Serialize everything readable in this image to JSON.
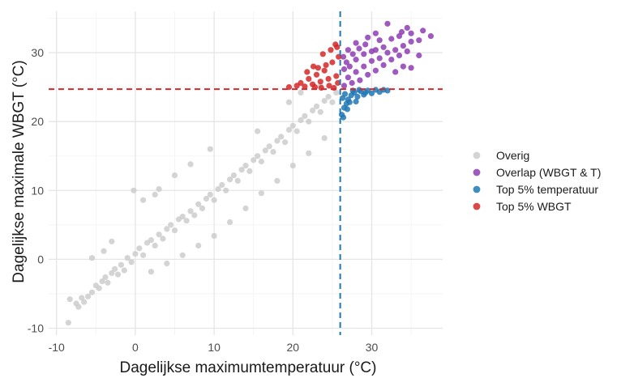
{
  "chart_data": {
    "type": "scatter",
    "xlabel": "Dagelijkse maximumtemperatuur (°C)",
    "ylabel": "Dagelijkse maximale WBGT (°C)",
    "xlim": [
      -11,
      39
    ],
    "ylim": [
      -11,
      36
    ],
    "xticks": [
      -10,
      0,
      10,
      20,
      30
    ],
    "yticks": [
      -10,
      0,
      10,
      20,
      30
    ],
    "grid": true,
    "legend_position": "right",
    "thresholds": {
      "temperature_top5": 26.0,
      "wbgt_top5": 24.7
    },
    "threshold_colors": {
      "temperature": "#1f77b4",
      "wbgt": "#d62728"
    },
    "series": [
      {
        "name": "Overig",
        "color": "#cccccc",
        "points": [
          [
            -8.5,
            -9.2
          ],
          [
            -8.3,
            -5.8
          ],
          [
            -7.5,
            -6.4
          ],
          [
            -7.2,
            -6.9
          ],
          [
            -6.8,
            -5.6
          ],
          [
            -6.5,
            -6.2
          ],
          [
            -6.0,
            -5.4
          ],
          [
            -5.5,
            -4.8
          ],
          [
            -5.0,
            -3.8
          ],
          [
            -4.6,
            -4.2
          ],
          [
            -4.2,
            -3.2
          ],
          [
            -3.8,
            -2.6
          ],
          [
            -3.5,
            -3.4
          ],
          [
            -3.0,
            -2.0
          ],
          [
            -2.6,
            -1.4
          ],
          [
            -2.2,
            -2.2
          ],
          [
            -1.8,
            -0.8
          ],
          [
            -1.4,
            -1.6
          ],
          [
            -1.0,
            0.2
          ],
          [
            -0.5,
            -0.4
          ],
          [
            0.0,
            0.8
          ],
          [
            0.5,
            1.6
          ],
          [
            1.0,
            0.6
          ],
          [
            1.5,
            2.4
          ],
          [
            2.0,
            2.8
          ],
          [
            2.5,
            2.0
          ],
          [
            3.0,
            3.6
          ],
          [
            3.5,
            3.0
          ],
          [
            4.0,
            4.4
          ],
          [
            4.5,
            5.0
          ],
          [
            5.0,
            4.2
          ],
          [
            5.5,
            5.8
          ],
          [
            6.0,
            6.2
          ],
          [
            6.5,
            5.6
          ],
          [
            7.0,
            7.0
          ],
          [
            7.5,
            6.4
          ],
          [
            8.0,
            8.0
          ],
          [
            8.5,
            7.4
          ],
          [
            9.0,
            8.8
          ],
          [
            9.5,
            9.4
          ],
          [
            10.0,
            8.6
          ],
          [
            10.5,
            10.2
          ],
          [
            11.0,
            10.8
          ],
          [
            11.5,
            10.0
          ],
          [
            12.0,
            11.6
          ],
          [
            12.5,
            12.2
          ],
          [
            13.0,
            11.4
          ],
          [
            13.5,
            13.0
          ],
          [
            14.0,
            13.6
          ],
          [
            14.5,
            12.8
          ],
          [
            15.0,
            14.4
          ],
          [
            15.5,
            15.0
          ],
          [
            16.0,
            14.2
          ],
          [
            16.5,
            15.8
          ],
          [
            17.0,
            16.4
          ],
          [
            17.5,
            15.6
          ],
          [
            18.0,
            17.2
          ],
          [
            18.5,
            17.8
          ],
          [
            19.0,
            17.0
          ],
          [
            19.5,
            18.8
          ],
          [
            20.0,
            19.4
          ],
          [
            20.5,
            18.6
          ],
          [
            21.0,
            20.2
          ],
          [
            21.5,
            20.8
          ],
          [
            22.0,
            20.0
          ],
          [
            22.5,
            21.6
          ],
          [
            23.0,
            22.2
          ],
          [
            23.5,
            21.4
          ],
          [
            24.0,
            23.0
          ],
          [
            24.5,
            23.6
          ],
          [
            25.0,
            22.8
          ],
          [
            25.5,
            24.2
          ],
          [
            -0.2,
            10.0
          ],
          [
            1.0,
            8.6
          ],
          [
            3.0,
            10.2
          ],
          [
            5.0,
            12.2
          ],
          [
            7.0,
            13.8
          ],
          [
            9.5,
            16.0
          ],
          [
            2.5,
            9.4
          ],
          [
            -3.0,
            2.6
          ],
          [
            -4.0,
            1.2
          ],
          [
            10.0,
            3.4
          ],
          [
            8.0,
            2.0
          ],
          [
            6.0,
            0.6
          ],
          [
            12.0,
            5.4
          ],
          [
            14.0,
            7.4
          ],
          [
            16.0,
            9.6
          ],
          [
            18.0,
            11.4
          ],
          [
            20.0,
            13.6
          ],
          [
            22.0,
            15.4
          ],
          [
            24.0,
            17.6
          ],
          [
            -5.5,
            0.2
          ],
          [
            4.0,
            -0.6
          ],
          [
            2.0,
            -1.8
          ],
          [
            15.5,
            18.6
          ],
          [
            19.5,
            22.8
          ],
          [
            21.0,
            24.2
          ],
          [
            23.5,
            25.2
          ]
        ]
      },
      {
        "name": "Overlap (WBGT & T)",
        "color": "#8e3db5",
        "points": [
          [
            26.5,
            25.2
          ],
          [
            27.0,
            26.4
          ],
          [
            27.5,
            25.6
          ],
          [
            28.0,
            27.2
          ],
          [
            28.5,
            26.0
          ],
          [
            29.0,
            28.0
          ],
          [
            29.5,
            26.8
          ],
          [
            30.0,
            28.8
          ],
          [
            30.5,
            27.4
          ],
          [
            31.0,
            29.2
          ],
          [
            31.5,
            28.2
          ],
          [
            32.0,
            30.0
          ],
          [
            32.5,
            29.0
          ],
          [
            33.0,
            30.4
          ],
          [
            33.5,
            29.6
          ],
          [
            34.0,
            31.0
          ],
          [
            34.5,
            30.2
          ],
          [
            35.0,
            31.6
          ],
          [
            26.8,
            28.6
          ],
          [
            27.6,
            29.8
          ],
          [
            28.4,
            30.6
          ],
          [
            29.2,
            31.2
          ],
          [
            30.0,
            30.2
          ],
          [
            31.0,
            31.8
          ],
          [
            26.5,
            27.6
          ],
          [
            27.2,
            28.0
          ],
          [
            28.0,
            29.0
          ],
          [
            29.0,
            29.8
          ],
          [
            30.5,
            30.4
          ],
          [
            31.5,
            30.8
          ],
          [
            32.5,
            32.0
          ],
          [
            33.5,
            32.4
          ],
          [
            32.0,
            34.2
          ],
          [
            33.8,
            33.0
          ],
          [
            35.0,
            32.8
          ],
          [
            36.0,
            31.8
          ],
          [
            36.5,
            33.2
          ],
          [
            37.5,
            32.4
          ],
          [
            35.0,
            27.8
          ],
          [
            36.0,
            29.6
          ],
          [
            34.0,
            28.0
          ],
          [
            27.0,
            30.4
          ],
          [
            28.0,
            31.4
          ],
          [
            26.4,
            29.4
          ],
          [
            29.5,
            32.2
          ],
          [
            30.5,
            32.8
          ],
          [
            34.5,
            33.6
          ],
          [
            33.0,
            27.2
          ]
        ]
      },
      {
        "name": "Top 5% temperatuur",
        "color": "#1f77b4",
        "points": [
          [
            26.2,
            21.0
          ],
          [
            26.5,
            22.0
          ],
          [
            26.8,
            22.6
          ],
          [
            27.0,
            23.2
          ],
          [
            27.4,
            23.8
          ],
          [
            27.8,
            24.2
          ],
          [
            28.2,
            23.6
          ],
          [
            28.6,
            24.4
          ],
          [
            29.0,
            23.9
          ],
          [
            29.5,
            24.5
          ],
          [
            30.0,
            24.1
          ],
          [
            30.5,
            24.6
          ],
          [
            31.0,
            24.3
          ],
          [
            31.5,
            24.6
          ],
          [
            32.0,
            24.5
          ],
          [
            26.3,
            23.4
          ],
          [
            26.6,
            24.0
          ],
          [
            27.2,
            22.8
          ],
          [
            27.6,
            24.5
          ],
          [
            28.0,
            22.9
          ],
          [
            28.4,
            24.6
          ],
          [
            29.2,
            24.2
          ],
          [
            26.4,
            20.6
          ],
          [
            26.9,
            21.8
          ]
        ]
      },
      {
        "name": "Top 5% WBGT",
        "color": "#d62728",
        "points": [
          [
            19.5,
            25.0
          ],
          [
            20.5,
            25.2
          ],
          [
            21.0,
            25.6
          ],
          [
            21.5,
            25.1
          ],
          [
            22.0,
            26.2
          ],
          [
            22.5,
            25.4
          ],
          [
            23.0,
            26.8
          ],
          [
            23.5,
            25.8
          ],
          [
            24.0,
            27.4
          ],
          [
            24.5,
            26.2
          ],
          [
            25.0,
            28.6
          ],
          [
            25.5,
            26.6
          ],
          [
            23.2,
            27.8
          ],
          [
            24.2,
            28.2
          ],
          [
            24.8,
            30.4
          ],
          [
            25.6,
            30.8
          ],
          [
            25.4,
            31.2
          ],
          [
            25.8,
            29.4
          ],
          [
            23.8,
            29.8
          ],
          [
            22.6,
            28.0
          ],
          [
            21.8,
            27.2
          ],
          [
            24.6,
            25.2
          ],
          [
            25.2,
            24.9
          ],
          [
            25.7,
            25.6
          ],
          [
            23.6,
            24.9
          ],
          [
            22.8,
            25.0
          ]
        ]
      }
    ]
  }
}
